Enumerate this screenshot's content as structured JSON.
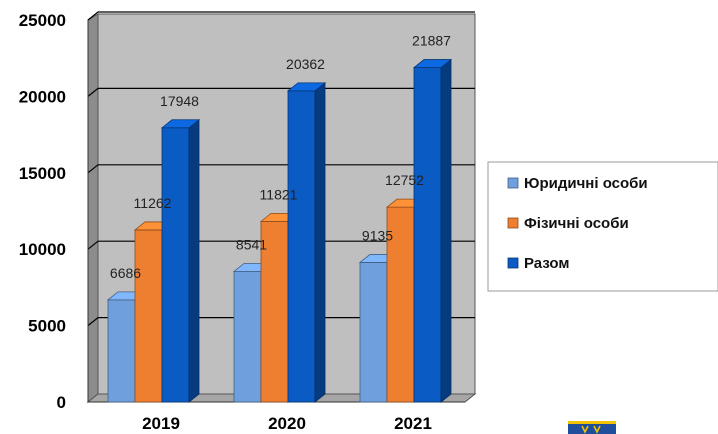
{
  "chart_data": {
    "type": "bar",
    "categories": [
      "2019",
      "2020",
      "2021"
    ],
    "series": [
      {
        "name": "Юридичні особи",
        "color": "#6f9fdc",
        "values": [
          6686,
          8541,
          9135
        ]
      },
      {
        "name": "Фізичні особи",
        "color": "#ee7f30",
        "values": [
          11262,
          11821,
          12752
        ]
      },
      {
        "name": "Разом",
        "color": "#0a5bc4",
        "values": [
          17948,
          20362,
          21887
        ]
      }
    ],
    "ylim": [
      0,
      25000
    ],
    "yticks": [
      "0",
      "5000",
      "10000",
      "15000",
      "20000",
      "25000"
    ],
    "grid": true,
    "legend_position": "right",
    "style": "3d-clustered-column"
  }
}
